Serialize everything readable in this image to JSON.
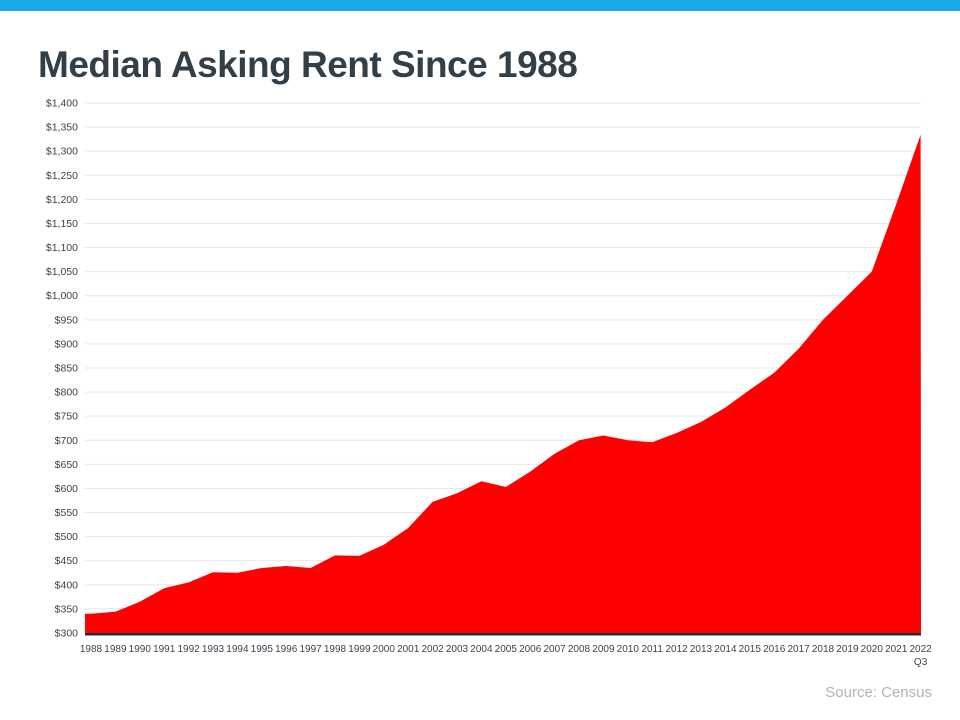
{
  "header": {
    "bar_color": "#18A9E8"
  },
  "title": "Median Asking Rent Since 1988",
  "source_note": "Source: Census",
  "chart_data": {
    "type": "area",
    "title": "Median Asking Rent Since 1988",
    "categories": [
      "1988",
      "1989",
      "1990",
      "1991",
      "1992",
      "1993",
      "1994",
      "1995",
      "1996",
      "1997",
      "1998",
      "1999",
      "2000",
      "2001",
      "2002",
      "2003",
      "2004",
      "2005",
      "2006",
      "2007",
      "2008",
      "2009",
      "2010",
      "2011",
      "2012",
      "2013",
      "2014",
      "2015",
      "2016",
      "2017",
      "2018",
      "2019",
      "2020",
      "2021",
      "2022"
    ],
    "values": [
      340,
      344,
      365,
      393,
      405,
      426,
      425,
      435,
      439,
      435,
      461,
      460,
      483,
      518,
      572,
      590,
      615,
      603,
      635,
      672,
      700,
      710,
      700,
      696,
      715,
      738,
      768,
      805,
      840,
      890,
      950,
      1000,
      1050,
      1190,
      1334
    ],
    "final_period_label": "Q3",
    "xlabel": "",
    "ylabel": "",
    "ylim": [
      300,
      1400
    ],
    "y_tick_step": 50,
    "y_tick_prefix": "$",
    "grid": true,
    "legend": "none",
    "colors": {
      "area_fill": "#FE0000",
      "baseline": "#262D36",
      "gridline": "#E7E7E7",
      "axis_text": "#3A444E"
    }
  }
}
